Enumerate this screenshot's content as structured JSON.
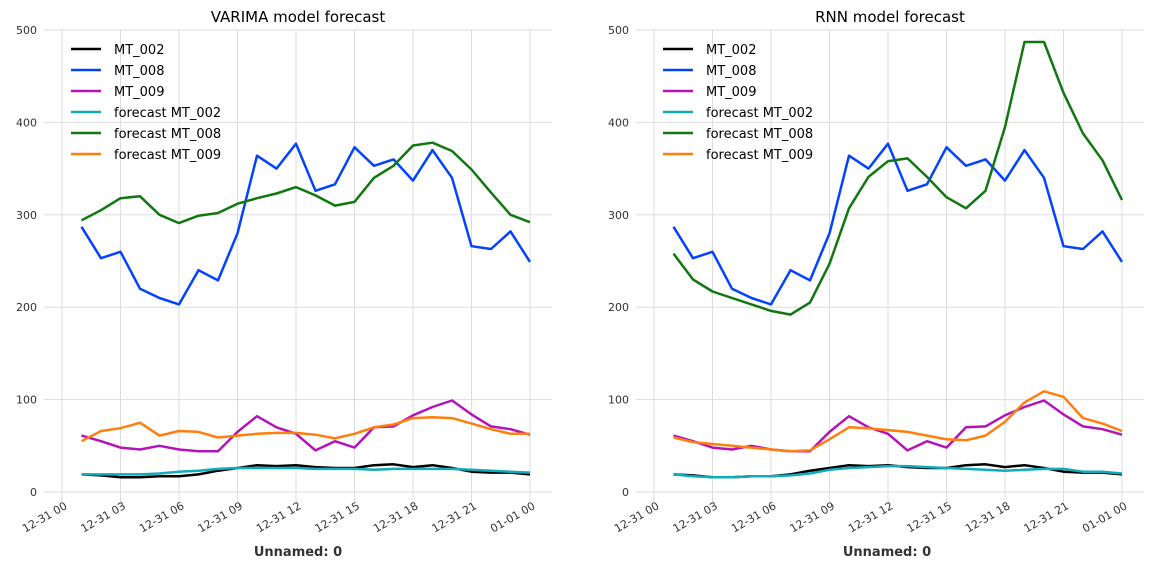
{
  "chart_data": [
    {
      "type": "line",
      "title": "VARIMA model forecast",
      "xlabel": "Unnamed: 0",
      "ylabel": "",
      "ylim": [
        0,
        500
      ],
      "yticks": [
        0,
        100,
        200,
        300,
        400,
        500
      ],
      "xticks": [
        "12-31 00",
        "12-31 03",
        "12-31 06",
        "12-31 09",
        "12-31 12",
        "12-31 15",
        "12-31 18",
        "12-31 21",
        "01-01 00"
      ],
      "x": [
        "12-31 01",
        "12-31 02",
        "12-31 03",
        "12-31 04",
        "12-31 05",
        "12-31 06",
        "12-31 07",
        "12-31 08",
        "12-31 09",
        "12-31 10",
        "12-31 11",
        "12-31 12",
        "12-31 13",
        "12-31 14",
        "12-31 15",
        "12-31 16",
        "12-31 17",
        "12-31 18",
        "12-31 19",
        "12-31 20",
        "12-31 21",
        "12-31 22",
        "12-31 23",
        "01-01 00"
      ],
      "grid": true,
      "legend": "top-left",
      "series": [
        {
          "name": "MT_002",
          "color": "#000000",
          "values": [
            19,
            18,
            16,
            16,
            17,
            17,
            19,
            23,
            26,
            29,
            28,
            29,
            27,
            26,
            26,
            29,
            30,
            27,
            29,
            26,
            22,
            21,
            21,
            19
          ]
        },
        {
          "name": "MT_008",
          "color": "#0343fe",
          "values": [
            287,
            253,
            260,
            220,
            210,
            203,
            240,
            229,
            280,
            364,
            350,
            377,
            326,
            333,
            373,
            353,
            360,
            337,
            370,
            340,
            266,
            263,
            282,
            249
          ]
        },
        {
          "name": "MT_009",
          "color": "#b313b8",
          "values": [
            61,
            55,
            48,
            46,
            50,
            46,
            44,
            44,
            65,
            82,
            70,
            63,
            45,
            55,
            48,
            70,
            71,
            83,
            92,
            99,
            84,
            71,
            68,
            62
          ]
        },
        {
          "name": "forecast MT_002",
          "color": "#12abb8",
          "values": [
            19,
            19,
            19,
            19,
            20,
            22,
            23,
            25,
            26,
            26,
            26,
            26,
            25,
            25,
            25,
            24,
            25,
            25,
            25,
            25,
            24,
            23,
            22,
            21
          ]
        },
        {
          "name": "forecast MT_008",
          "color": "#117711",
          "values": [
            294,
            305,
            318,
            320,
            300,
            291,
            299,
            302,
            312,
            318,
            323,
            330,
            321,
            310,
            314,
            340,
            353,
            375,
            378,
            369,
            349,
            324,
            300,
            292
          ]
        },
        {
          "name": "forecast MT_009",
          "color": "#ff7f0e",
          "values": [
            55,
            66,
            69,
            75,
            61,
            66,
            65,
            59,
            61,
            63,
            64,
            64,
            62,
            58,
            63,
            70,
            73,
            80,
            81,
            80,
            74,
            68,
            63,
            63
          ]
        }
      ]
    },
    {
      "type": "line",
      "title": "RNN model forecast",
      "xlabel": "Unnamed: 0",
      "ylabel": "",
      "ylim": [
        0,
        500
      ],
      "yticks": [
        0,
        100,
        200,
        300,
        400,
        500
      ],
      "xticks": [
        "12-31 00",
        "12-31 03",
        "12-31 06",
        "12-31 09",
        "12-31 12",
        "12-31 15",
        "12-31 18",
        "12-31 21",
        "01-01 00"
      ],
      "x": [
        "12-31 01",
        "12-31 02",
        "12-31 03",
        "12-31 04",
        "12-31 05",
        "12-31 06",
        "12-31 07",
        "12-31 08",
        "12-31 09",
        "12-31 10",
        "12-31 11",
        "12-31 12",
        "12-31 13",
        "12-31 14",
        "12-31 15",
        "12-31 16",
        "12-31 17",
        "12-31 18",
        "12-31 19",
        "12-31 20",
        "12-31 21",
        "12-31 22",
        "12-31 23",
        "01-01 00"
      ],
      "grid": true,
      "legend": "top-left",
      "series": [
        {
          "name": "MT_002",
          "color": "#000000",
          "values": [
            19,
            18,
            16,
            16,
            17,
            17,
            19,
            23,
            26,
            29,
            28,
            29,
            27,
            26,
            26,
            29,
            30,
            27,
            29,
            26,
            22,
            21,
            21,
            19
          ]
        },
        {
          "name": "MT_008",
          "color": "#0343fe",
          "values": [
            287,
            253,
            260,
            220,
            210,
            203,
            240,
            229,
            280,
            364,
            350,
            377,
            326,
            333,
            373,
            353,
            360,
            337,
            370,
            340,
            266,
            263,
            282,
            249
          ]
        },
        {
          "name": "MT_009",
          "color": "#b313b8",
          "values": [
            61,
            55,
            48,
            46,
            50,
            46,
            44,
            44,
            65,
            82,
            70,
            63,
            45,
            55,
            48,
            70,
            71,
            83,
            92,
            99,
            84,
            71,
            68,
            62
          ]
        },
        {
          "name": "forecast MT_002",
          "color": "#12abb8",
          "values": [
            19,
            17,
            16,
            16,
            17,
            17,
            18,
            20,
            24,
            26,
            27,
            28,
            28,
            27,
            26,
            25,
            24,
            23,
            24,
            25,
            25,
            22,
            22,
            20
          ]
        },
        {
          "name": "forecast MT_008",
          "color": "#117711",
          "values": [
            258,
            230,
            217,
            210,
            203,
            196,
            192,
            205,
            247,
            307,
            341,
            358,
            361,
            341,
            319,
            307,
            326,
            395,
            487,
            487,
            432,
            388,
            359,
            316
          ]
        },
        {
          "name": "forecast MT_009",
          "color": "#ff7f0e",
          "values": [
            59,
            54,
            52,
            50,
            48,
            46,
            44,
            45,
            57,
            70,
            69,
            67,
            65,
            61,
            57,
            56,
            61,
            76,
            97,
            109,
            103,
            80,
            74,
            66
          ]
        }
      ]
    }
  ]
}
